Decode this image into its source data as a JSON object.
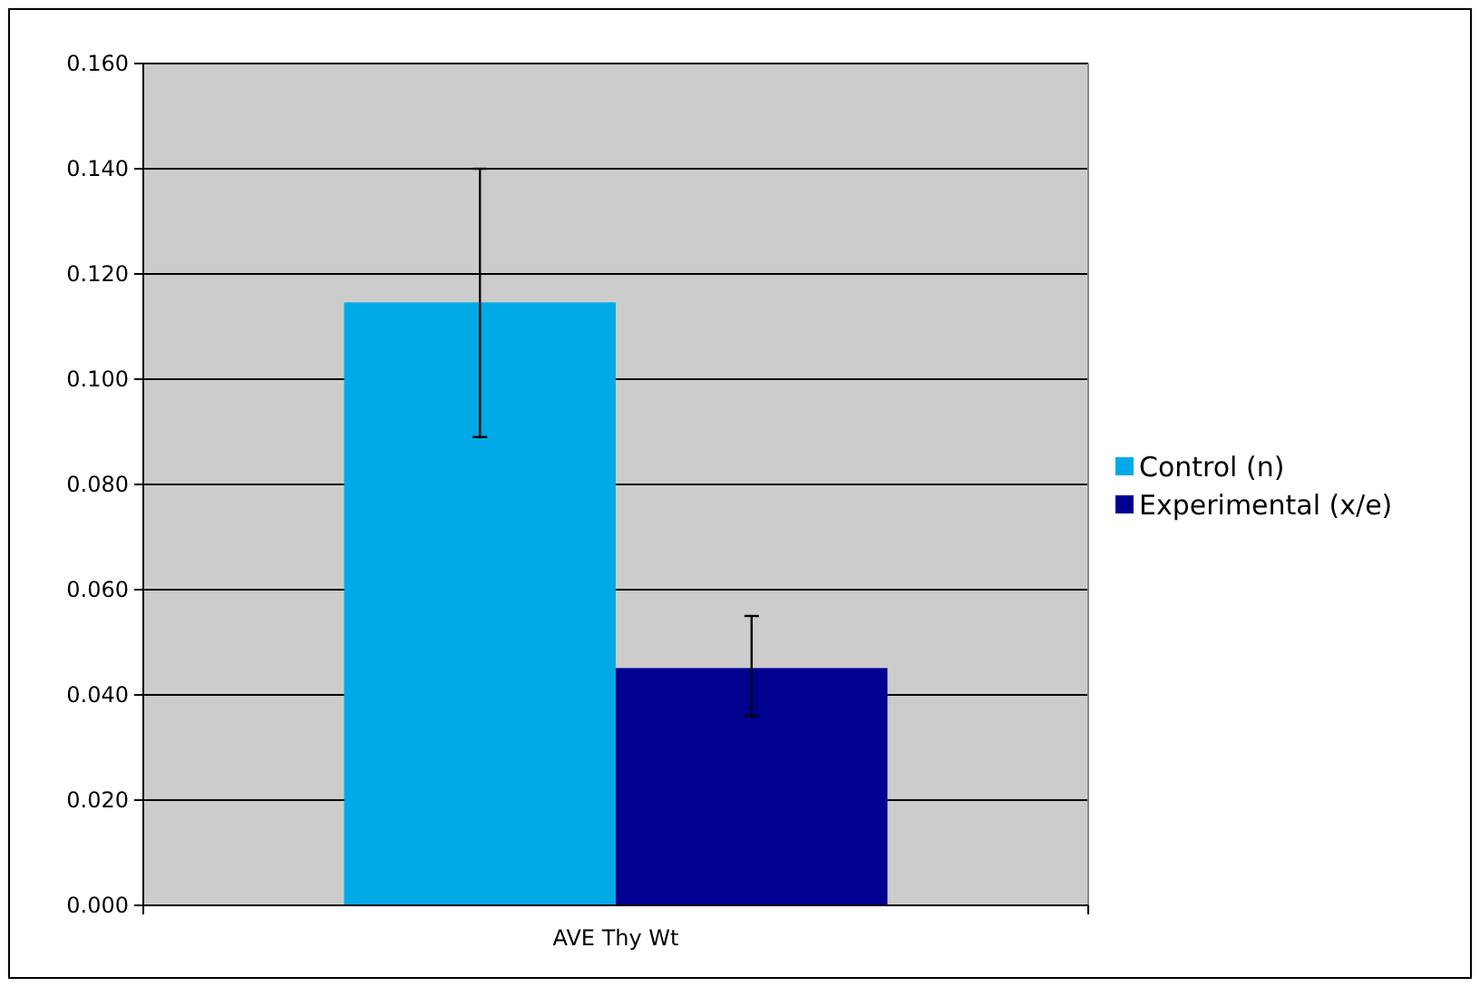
{
  "chart_data": {
    "type": "bar",
    "categories": [
      "AVE Thy Wt"
    ],
    "series": [
      {
        "name": "Control (n)",
        "color": "#00aae6",
        "values": [
          0.1146
        ],
        "errors": [
          [
            0.089,
            0.14
          ]
        ]
      },
      {
        "name": "Experimental (x/e)",
        "color": "#000090",
        "values": [
          0.0451
        ],
        "errors": [
          [
            0.036,
            0.055
          ]
        ]
      }
    ],
    "ylim": [
      0,
      0.16
    ],
    "yticks": [
      {
        "value": 0,
        "label": "0.000"
      },
      {
        "value": 0.02,
        "label": "0.020"
      },
      {
        "value": 0.04,
        "label": "0.040"
      },
      {
        "value": 0.06,
        "label": "0.060"
      },
      {
        "value": 0.08,
        "label": "0.080"
      },
      {
        "value": 0.1,
        "label": "0.100"
      },
      {
        "value": 0.12,
        "label": "0.120"
      },
      {
        "value": 0.14,
        "label": "0.140"
      },
      {
        "value": 0.16,
        "label": "0.160"
      }
    ],
    "grid": "y",
    "legend": "right"
  }
}
